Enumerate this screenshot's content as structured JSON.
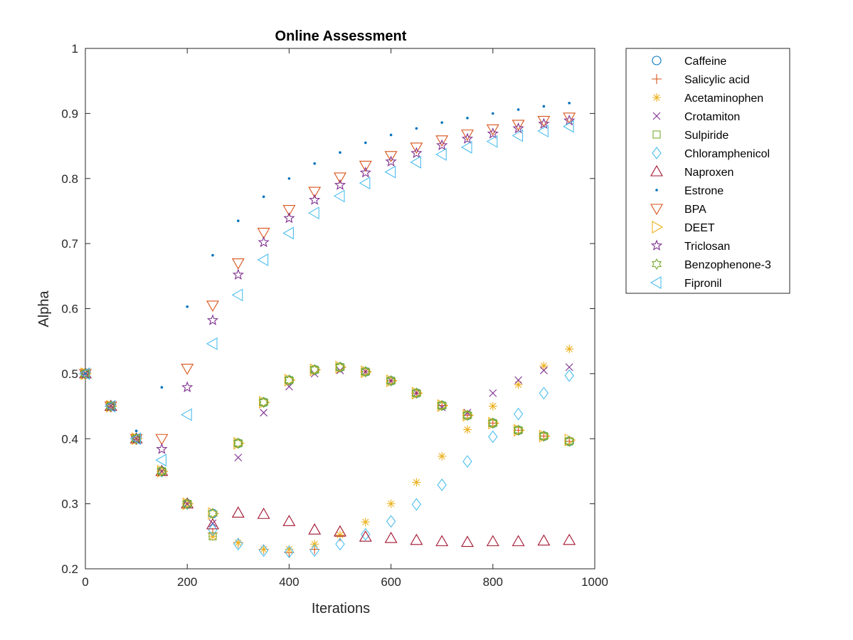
{
  "chart_data": {
    "type": "scatter",
    "title": "Online Assessment",
    "xlabel": "Iterations",
    "ylabel": "Alpha",
    "xlim": [
      0,
      1000
    ],
    "ylim": [
      0.2,
      1
    ],
    "xticks": [
      0,
      200,
      400,
      600,
      800,
      1000
    ],
    "xtick_labels": [
      "0",
      "200",
      "400",
      "600",
      "800",
      "1000"
    ],
    "yticks": [
      0.2,
      0.3,
      0.4,
      0.5,
      0.6,
      0.7,
      0.8,
      0.9,
      1
    ],
    "ytick_labels": [
      "0.2",
      "0.3",
      "0.4",
      "0.5",
      "0.6",
      "0.7",
      "0.8",
      "0.9",
      "1"
    ],
    "grid": false,
    "legend_position": "outside-top-right",
    "x": [
      0,
      50,
      100,
      150,
      200,
      250,
      300,
      350,
      400,
      450,
      500,
      550,
      600,
      650,
      700,
      750,
      800,
      850,
      900,
      950
    ],
    "series": [
      {
        "name": "Caffeine",
        "marker": "circle",
        "color": "#0072bd",
        "values": [
          0.5,
          0.45,
          0.4,
          0.35,
          0.3,
          0.285,
          0.393,
          0.456,
          0.49,
          0.506,
          0.51,
          0.503,
          0.489,
          0.47,
          0.451,
          0.436,
          0.424,
          0.413,
          0.404,
          0.396
        ]
      },
      {
        "name": "Salicylic acid",
        "marker": "plus",
        "color": "#d95319",
        "values": [
          0.5,
          0.45,
          0.4,
          0.35,
          0.3,
          0.255,
          0.24,
          0.23,
          0.225,
          0.23,
          0.25,
          0.503,
          0.489,
          0.47,
          0.451,
          0.436,
          0.424,
          0.413,
          0.404,
          0.396
        ]
      },
      {
        "name": "Acetaminophen",
        "marker": "asterisk",
        "color": "#edb120",
        "values": [
          0.5,
          0.45,
          0.4,
          0.35,
          0.3,
          0.25,
          0.24,
          0.23,
          0.23,
          0.238,
          0.252,
          0.272,
          0.3,
          0.333,
          0.373,
          0.414,
          0.45,
          0.483,
          0.512,
          0.538
        ]
      },
      {
        "name": "Crotamiton",
        "marker": "x",
        "color": "#7e2f8e",
        "values": [
          0.5,
          0.45,
          0.4,
          0.35,
          0.3,
          0.27,
          0.371,
          0.44,
          0.48,
          0.5,
          0.505,
          0.503,
          0.489,
          0.47,
          0.448,
          0.44,
          0.47,
          0.49,
          0.505,
          0.51
        ]
      },
      {
        "name": "Sulpiride",
        "marker": "square",
        "color": "#77ac30",
        "values": [
          0.5,
          0.45,
          0.4,
          0.35,
          0.3,
          0.25,
          0.393,
          0.456,
          0.49,
          0.506,
          0.51,
          0.503,
          0.489,
          0.47,
          0.451,
          0.436,
          0.424,
          0.413,
          0.404,
          0.396
        ]
      },
      {
        "name": "Chloramphenicol",
        "marker": "diamond",
        "color": "#4dbeee",
        "values": [
          0.5,
          0.45,
          0.4,
          0.35,
          0.3,
          0.26,
          0.238,
          0.228,
          0.226,
          0.228,
          0.238,
          0.253,
          0.273,
          0.299,
          0.329,
          0.365,
          0.403,
          0.438,
          0.47,
          0.497
        ]
      },
      {
        "name": "Naproxen",
        "marker": "triangle-up",
        "color": "#a2142f",
        "values": [
          0.5,
          0.45,
          0.4,
          0.35,
          0.3,
          0.268,
          0.286,
          0.284,
          0.273,
          0.26,
          0.257,
          0.249,
          0.247,
          0.244,
          0.242,
          0.241,
          0.242,
          0.242,
          0.243,
          0.244
        ]
      },
      {
        "name": "Estrone",
        "marker": "point",
        "color": "#0072bd",
        "values": [
          0.5,
          0.455,
          0.412,
          0.479,
          0.603,
          0.682,
          0.735,
          0.772,
          0.8,
          0.823,
          0.84,
          0.855,
          0.867,
          0.877,
          0.886,
          0.893,
          0.9,
          0.906,
          0.911,
          0.916
        ]
      },
      {
        "name": "BPA",
        "marker": "triangle-down",
        "color": "#d95319",
        "values": [
          0.5,
          0.45,
          0.4,
          0.4,
          0.508,
          0.605,
          0.67,
          0.717,
          0.752,
          0.78,
          0.802,
          0.82,
          0.835,
          0.848,
          0.859,
          0.868,
          0.876,
          0.883,
          0.889,
          0.894
        ]
      },
      {
        "name": "DEET",
        "marker": "triangle-right",
        "color": "#edb120",
        "values": [
          0.5,
          0.45,
          0.4,
          0.35,
          0.3,
          0.285,
          0.393,
          0.456,
          0.49,
          0.506,
          0.51,
          0.503,
          0.489,
          0.47,
          0.451,
          0.436,
          0.424,
          0.413,
          0.404,
          0.398
        ]
      },
      {
        "name": "Triclosan",
        "marker": "pentagram",
        "color": "#7e2f8e",
        "values": [
          0.5,
          0.45,
          0.4,
          0.384,
          0.479,
          0.582,
          0.652,
          0.702,
          0.739,
          0.767,
          0.79,
          0.809,
          0.826,
          0.839,
          0.851,
          0.861,
          0.869,
          0.877,
          0.884,
          0.889
        ]
      },
      {
        "name": "Benzophenone-3",
        "marker": "hexagram",
        "color": "#77ac30",
        "values": [
          0.5,
          0.45,
          0.4,
          0.35,
          0.3,
          0.285,
          0.393,
          0.456,
          0.49,
          0.506,
          0.51,
          0.503,
          0.489,
          0.47,
          0.451,
          0.436,
          0.424,
          0.413,
          0.404,
          0.396
        ]
      },
      {
        "name": "Fipronil",
        "marker": "triangle-left",
        "color": "#4dbeee",
        "values": [
          0.5,
          0.45,
          0.4,
          0.367,
          0.437,
          0.546,
          0.621,
          0.675,
          0.716,
          0.747,
          0.773,
          0.793,
          0.81,
          0.825,
          0.837,
          0.848,
          0.857,
          0.866,
          0.873,
          0.88
        ]
      }
    ]
  }
}
